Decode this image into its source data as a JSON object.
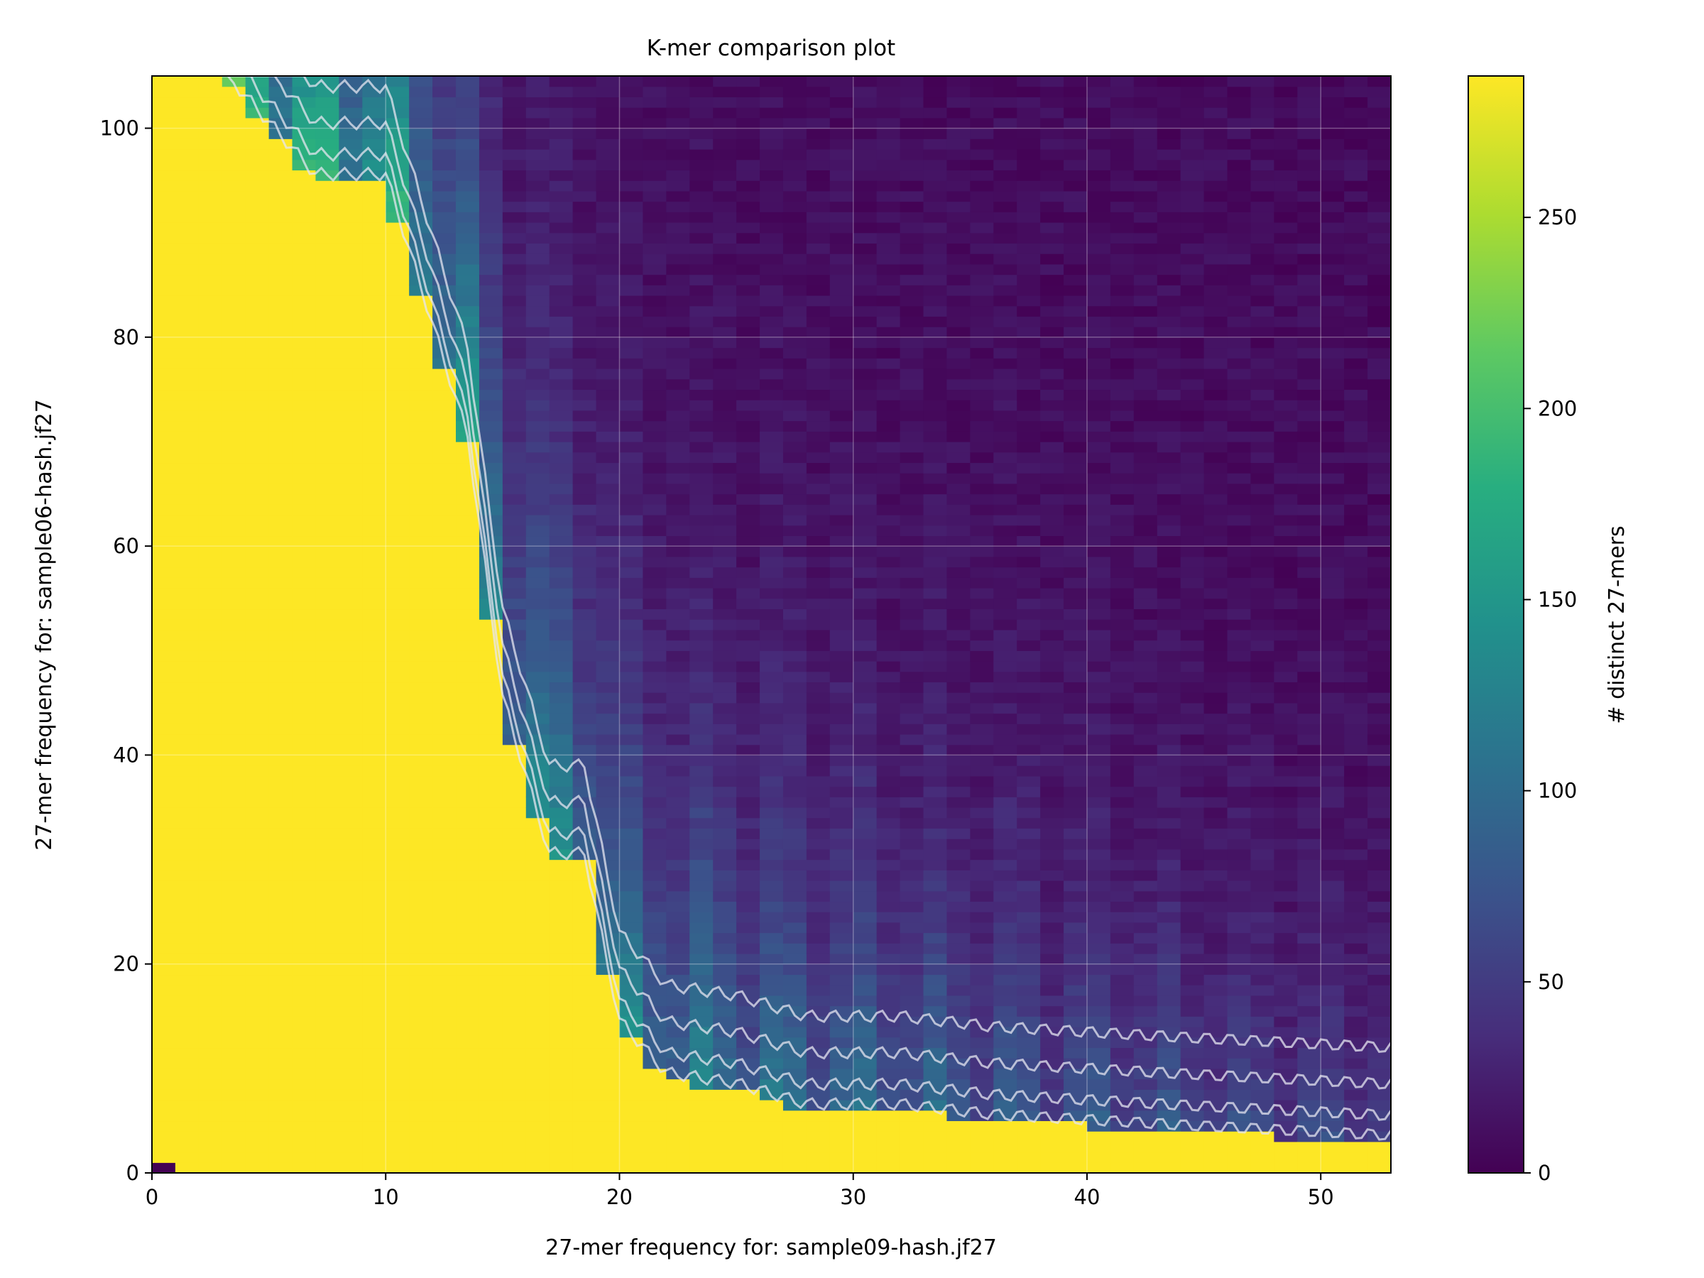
{
  "chart_data": {
    "type": "heatmap",
    "title": "K-mer comparison plot",
    "xlabel": "27-mer frequency for: sample09-hash.jf27",
    "ylabel": "27-mer frequency for: sample06-hash.jf27",
    "xlim": [
      0,
      53
    ],
    "ylim": [
      0,
      105
    ],
    "xticks": [
      0,
      10,
      20,
      30,
      40,
      50
    ],
    "yticks": [
      0,
      20,
      40,
      60,
      80,
      100
    ],
    "grid": true,
    "colorbar": {
      "label": "# distinct 27-mers",
      "range": [
        0,
        287
      ],
      "ticks": [
        0,
        50,
        100,
        150,
        200,
        250
      ],
      "colormap": "viridis"
    },
    "contours": true,
    "contour_color": "#e6e6f0",
    "zero_cell": {
      "x": [
        0,
        1
      ],
      "y": [
        0,
        1
      ]
    },
    "saturated_boundary": [
      {
        "x": 3,
        "y": 105
      },
      {
        "x": 7,
        "y": 95
      },
      {
        "x": 10,
        "y": 95
      },
      {
        "x": 13.5,
        "y": 70
      },
      {
        "x": 15,
        "y": 45
      },
      {
        "x": 17,
        "y": 30
      },
      {
        "x": 18.5,
        "y": 30
      },
      {
        "x": 20,
        "y": 14
      },
      {
        "x": 22,
        "y": 9
      },
      {
        "x": 25,
        "y": 8
      },
      {
        "x": 28,
        "y": 6
      },
      {
        "x": 32,
        "y": 6
      },
      {
        "x": 36,
        "y": 5
      },
      {
        "x": 44,
        "y": 4
      },
      {
        "x": 53,
        "y": 3
      }
    ],
    "colors": {
      "viridis": [
        "#440154",
        "#472d7b",
        "#3b528b",
        "#2c728e",
        "#21918c",
        "#28ae80",
        "#5ec962",
        "#addc30",
        "#fde725"
      ]
    }
  }
}
